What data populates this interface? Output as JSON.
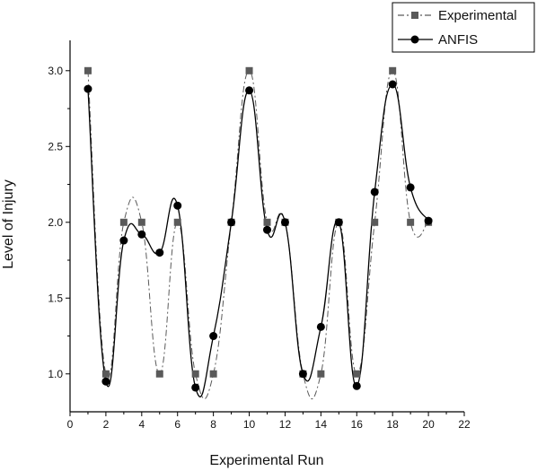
{
  "chart_data": {
    "type": "line",
    "xlabel": "Experimental Run",
    "ylabel": "Level of Injury",
    "xlim": [
      0,
      22
    ],
    "ylim": [
      0.75,
      3.2
    ],
    "x_ticks": [
      0,
      2,
      4,
      6,
      8,
      10,
      12,
      14,
      16,
      18,
      20,
      22
    ],
    "y_ticks": [
      1.0,
      1.5,
      2.0,
      2.5,
      3.0
    ],
    "grid": false,
    "legend_position": "top-right",
    "series": [
      {
        "name": "Experimental",
        "style": "dash-dot line with square markers",
        "color": "#5a5a5a",
        "x": [
          1,
          2,
          3,
          4,
          5,
          6,
          7,
          8,
          9,
          10,
          11,
          12,
          13,
          14,
          15,
          16,
          17,
          18,
          19,
          20
        ],
        "values": [
          3.0,
          1.0,
          2.0,
          2.0,
          1.0,
          2.0,
          1.0,
          1.0,
          2.0,
          3.0,
          2.0,
          2.0,
          1.0,
          1.0,
          2.0,
          1.0,
          2.0,
          3.0,
          2.0,
          2.0
        ]
      },
      {
        "name": "ANFIS",
        "style": "solid line with circle markers",
        "color": "#000000",
        "x": [
          1,
          2,
          3,
          4,
          5,
          6,
          7,
          8,
          9,
          10,
          11,
          12,
          13,
          14,
          15,
          16,
          17,
          18,
          19,
          20
        ],
        "values": [
          2.88,
          0.95,
          1.88,
          1.92,
          1.8,
          2.11,
          0.91,
          1.25,
          2.0,
          2.87,
          1.95,
          2.0,
          1.0,
          1.31,
          2.0,
          0.92,
          2.2,
          2.91,
          2.23,
          2.01
        ]
      }
    ]
  }
}
